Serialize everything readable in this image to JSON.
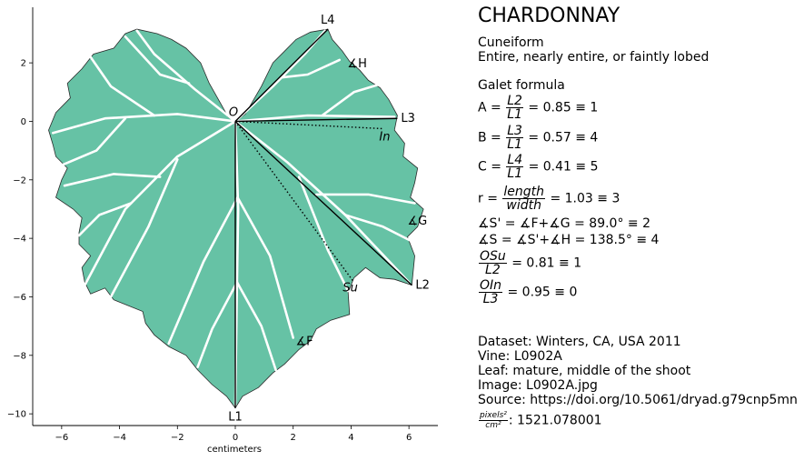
{
  "chart_data": {
    "type": "scatter",
    "title": "",
    "xlabel": "centimeters",
    "ylabel": "",
    "xlim": [
      -7,
      7
    ],
    "ylim": [
      -10.4,
      3.9
    ],
    "xticks": [
      -6,
      -4,
      -2,
      0,
      2,
      4,
      6
    ],
    "xtick_labels": [
      "−6",
      "−4",
      "−2",
      "0",
      "2",
      "4",
      "6"
    ],
    "yticks": [
      2,
      0,
      -2,
      -4,
      -6,
      -8,
      -10
    ],
    "ytick_labels": [
      "2",
      "0",
      "−2",
      "−4",
      "−6",
      "−8",
      "−10"
    ],
    "grid": false,
    "leaf_fill": "#66c2a5",
    "landmarks": [
      {
        "label": "O",
        "x": 0.0,
        "y": 0.0
      },
      {
        "label": "L1",
        "x": 0.0,
        "y": -9.8
      },
      {
        "label": "L2",
        "x": 6.1,
        "y": -5.6
      },
      {
        "label": "L3",
        "x": 5.6,
        "y": 0.1
      },
      {
        "label": "L4",
        "x": 3.2,
        "y": 3.15
      },
      {
        "label": "∡H",
        "x": 4.0,
        "y": 2.0
      },
      {
        "label": "In",
        "x": 5.1,
        "y": -0.25
      },
      {
        "label": "Su",
        "x": 4.1,
        "y": -5.5
      },
      {
        "label": "∡G",
        "x": 6.2,
        "y": -3.35
      },
      {
        "label": "∡F",
        "x": 2.4,
        "y": -7.5
      }
    ]
  },
  "panel": {
    "title": "CHARDONNAY",
    "shape": "Cuneiform",
    "lobing": "Entire, nearly entire, or faintly lobed",
    "galet_heading": "Galet formula",
    "A": {
      "lhs": "A =",
      "num": "L2",
      "den": "L1",
      "rhs": "= 0.85 ≡ 1"
    },
    "B": {
      "lhs": "B =",
      "num": "L3",
      "den": "L1",
      "rhs": "= 0.57 ≡ 4"
    },
    "C": {
      "lhs": "C =",
      "num": "L4",
      "den": "L1",
      "rhs": "= 0.41 ≡ 5"
    },
    "r": {
      "lhs": "r =",
      "num": "length",
      "den": "width",
      "rhs": "= 1.03 ≡ 3"
    },
    "s_prime": "∡S' = ∡F+∡G = 89.0° ≡ 2",
    "s": "∡S = ∡S'+∡H = 138.5° ≡ 4",
    "osu": {
      "num": "OSu",
      "den": "L2",
      "rhs": "= 0.81 ≡ 1"
    },
    "oin": {
      "num": "OIn",
      "den": "L3",
      "rhs": "= 0.95 ≡ 0"
    },
    "dataset": "Dataset: Winters, CA, USA 2011",
    "vine": "Vine: L0902A",
    "leaf": "Leaf: mature, middle of the shoot",
    "image": "Image: L0902A.jpg",
    "source": "Source: https://doi.org/10.5061/dryad.g79cnp5mn",
    "scale": {
      "num": "pixels²",
      "den": "cm²",
      "rhs": ": 1521.078001"
    }
  }
}
